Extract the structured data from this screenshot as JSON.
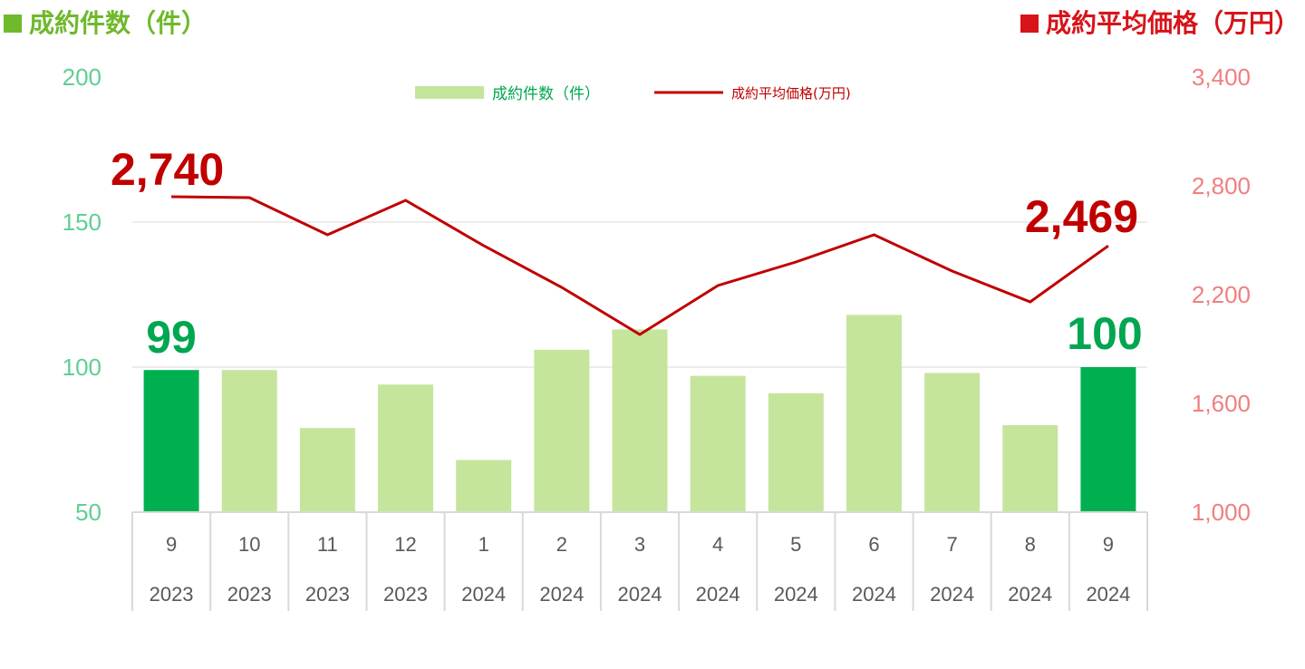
{
  "header": {
    "left_title": "成約件数（件）",
    "right_title": "成約平均価格（万円）",
    "left_color": "#6fb92c",
    "right_color": "#d7141a"
  },
  "chart_data": {
    "type": "bar",
    "categories": [
      "9",
      "10",
      "11",
      "12",
      "1",
      "2",
      "3",
      "4",
      "5",
      "6",
      "7",
      "8",
      "9"
    ],
    "years": [
      "2023",
      "2023",
      "2023",
      "2023",
      "2024",
      "2024",
      "2024",
      "2024",
      "2024",
      "2024",
      "2024",
      "2024",
      "2024"
    ],
    "series": [
      {
        "name": "成約件数（件）",
        "type": "bar",
        "axis": "left",
        "values": [
          99,
          99,
          79,
          94,
          68,
          106,
          113,
          97,
          91,
          118,
          98,
          80,
          100
        ],
        "color": "#c5e59c",
        "highlight_color": "#00b050",
        "highlight_indices": [
          0,
          12
        ]
      },
      {
        "name": "成約平均価格(万円)",
        "type": "line",
        "axis": "right",
        "values": [
          2740,
          2735,
          2530,
          2720,
          2470,
          2240,
          1980,
          2250,
          2380,
          2530,
          2330,
          2160,
          2469
        ],
        "color": "#c00000"
      }
    ],
    "y_left": {
      "lim": [
        50,
        200
      ],
      "ticks": [
        50,
        100,
        150,
        200
      ],
      "tick_labels": [
        "50",
        "100",
        "150",
        "200"
      ]
    },
    "y_right": {
      "lim": [
        1000,
        3400
      ],
      "ticks": [
        1000,
        1600,
        2200,
        2800,
        3400
      ],
      "tick_labels": [
        "1,000",
        "1,600",
        "2,200",
        "2,800",
        "3,400"
      ]
    },
    "data_labels": {
      "bar_first": "99",
      "bar_last": "100",
      "line_first": "2,740",
      "line_last": "2,469"
    },
    "legend": {
      "position": "top-center"
    },
    "grid": true
  }
}
